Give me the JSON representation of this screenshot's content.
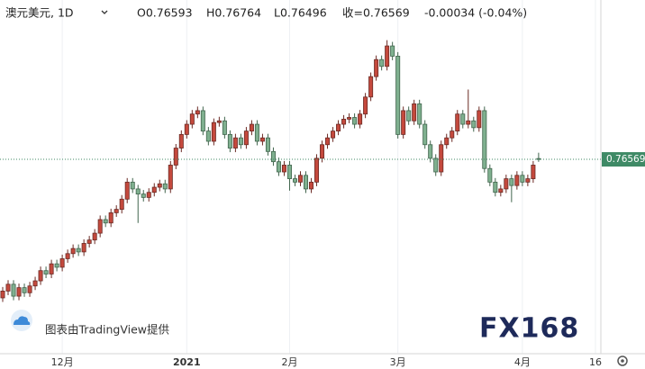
{
  "header": {
    "symbol": "澳元美元, 1D",
    "open": "O0.76593",
    "high": "H0.76764",
    "low": "L0.76496",
    "close": "收=0.76569",
    "change": "-0.00034 (-0.04%)"
  },
  "watermark": "图表由TradingView提供",
  "logo": "FX168",
  "chart_data": {
    "type": "candlestick",
    "up_color": "#c4493d",
    "down_color": "#7fb08f",
    "open": [
      0.725,
      0.727,
      0.729,
      0.7255,
      0.728,
      0.7265,
      0.7285,
      0.73,
      0.733,
      0.732,
      0.735,
      0.734,
      0.7365,
      0.738,
      0.7395,
      0.7385,
      0.741,
      0.742,
      0.744,
      0.748,
      0.747,
      0.75,
      0.751,
      0.754,
      0.759,
      0.757,
      0.7555,
      0.7545,
      0.756,
      0.7575,
      0.7585,
      0.757,
      0.764,
      0.769,
      0.773,
      0.776,
      0.779,
      0.78,
      0.774,
      0.771,
      0.7765,
      0.777,
      0.773,
      0.769,
      0.772,
      0.77,
      0.774,
      0.776,
      0.771,
      0.772,
      0.768,
      0.765,
      0.762,
      0.764,
      0.76,
      0.759,
      0.761,
      0.757,
      0.759,
      0.766,
      0.77,
      0.772,
      0.774,
      0.776,
      0.7775,
      0.778,
      0.776,
      0.779,
      0.784,
      0.79,
      0.795,
      0.793,
      0.799,
      0.796,
      0.773,
      0.78,
      0.777,
      0.782,
      0.776,
      0.77,
      0.766,
      0.762,
      0.77,
      0.772,
      0.774,
      0.779,
      0.776,
      0.777,
      0.775,
      0.78,
      0.763,
      0.759,
      0.756,
      0.757,
      0.76,
      0.758,
      0.761,
      0.759,
      0.76,
      0.76593
    ],
    "high": [
      0.7282,
      0.7302,
      0.7302,
      0.7292,
      0.7292,
      0.7297,
      0.7312,
      0.7342,
      0.7342,
      0.7362,
      0.7362,
      0.7377,
      0.7392,
      0.7407,
      0.7407,
      0.7422,
      0.7432,
      0.7452,
      0.7492,
      0.7492,
      0.7512,
      0.7522,
      0.7552,
      0.7602,
      0.7602,
      0.7582,
      0.7567,
      0.7572,
      0.7587,
      0.7597,
      0.7597,
      0.7652,
      0.7702,
      0.7742,
      0.7772,
      0.7802,
      0.7812,
      0.7812,
      0.7752,
      0.7777,
      0.7782,
      0.7782,
      0.7742,
      0.7732,
      0.7732,
      0.7752,
      0.7772,
      0.7772,
      0.7732,
      0.7732,
      0.7692,
      0.7662,
      0.7652,
      0.7652,
      0.7612,
      0.7622,
      0.7622,
      0.7602,
      0.7672,
      0.7712,
      0.7732,
      0.7752,
      0.7772,
      0.7787,
      0.7792,
      0.7792,
      0.7802,
      0.7852,
      0.7912,
      0.7962,
      0.7962,
      0.8007,
      0.8002,
      0.7972,
      0.7812,
      0.7812,
      0.7832,
      0.7832,
      0.7772,
      0.7712,
      0.7672,
      0.7712,
      0.7732,
      0.7752,
      0.7802,
      0.7802,
      0.7862,
      0.7782,
      0.7812,
      0.7812,
      0.7642,
      0.7602,
      0.7582,
      0.7612,
      0.7612,
      0.7622,
      0.7622,
      0.7612,
      0.7652,
      0.76764
    ],
    "low": [
      0.7238,
      0.7258,
      0.7243,
      0.7243,
      0.7253,
      0.7253,
      0.7273,
      0.7288,
      0.7308,
      0.7308,
      0.7328,
      0.7328,
      0.7353,
      0.7368,
      0.7373,
      0.7373,
      0.7398,
      0.7408,
      0.7428,
      0.7458,
      0.7458,
      0.7488,
      0.7498,
      0.7528,
      0.7558,
      0.747,
      0.7533,
      0.7533,
      0.7548,
      0.7563,
      0.7558,
      0.7558,
      0.7628,
      0.7678,
      0.7718,
      0.7748,
      0.7778,
      0.7728,
      0.7698,
      0.7698,
      0.7753,
      0.7718,
      0.7678,
      0.7678,
      0.7688,
      0.7688,
      0.7728,
      0.7698,
      0.7698,
      0.7668,
      0.7638,
      0.7608,
      0.7608,
      0.7565,
      0.7578,
      0.7578,
      0.7558,
      0.7558,
      0.7578,
      0.7648,
      0.7688,
      0.7708,
      0.7728,
      0.7748,
      0.7763,
      0.7748,
      0.7748,
      0.7778,
      0.7828,
      0.7888,
      0.7918,
      0.7918,
      0.7948,
      0.7718,
      0.7718,
      0.7758,
      0.7758,
      0.7748,
      0.7688,
      0.7648,
      0.7608,
      0.7608,
      0.7688,
      0.7708,
      0.7728,
      0.7748,
      0.7748,
      0.7738,
      0.7738,
      0.7618,
      0.7578,
      0.7548,
      0.7548,
      0.7558,
      0.7531,
      0.7568,
      0.7578,
      0.7578,
      0.7588,
      0.76496
    ],
    "close": [
      0.727,
      0.729,
      0.7255,
      0.728,
      0.7265,
      0.7285,
      0.73,
      0.733,
      0.732,
      0.735,
      0.734,
      0.7365,
      0.738,
      0.7395,
      0.7385,
      0.741,
      0.742,
      0.744,
      0.748,
      0.747,
      0.75,
      0.751,
      0.754,
      0.759,
      0.757,
      0.7555,
      0.7545,
      0.756,
      0.7575,
      0.7585,
      0.757,
      0.764,
      0.769,
      0.773,
      0.776,
      0.779,
      0.78,
      0.774,
      0.771,
      0.7765,
      0.777,
      0.773,
      0.769,
      0.772,
      0.77,
      0.774,
      0.776,
      0.771,
      0.772,
      0.768,
      0.765,
      0.762,
      0.764,
      0.76,
      0.759,
      0.761,
      0.757,
      0.759,
      0.766,
      0.77,
      0.772,
      0.774,
      0.776,
      0.7775,
      0.778,
      0.776,
      0.779,
      0.784,
      0.79,
      0.795,
      0.793,
      0.799,
      0.796,
      0.773,
      0.78,
      0.777,
      0.782,
      0.776,
      0.77,
      0.766,
      0.762,
      0.77,
      0.772,
      0.774,
      0.779,
      0.776,
      0.777,
      0.775,
      0.78,
      0.763,
      0.759,
      0.756,
      0.757,
      0.76,
      0.758,
      0.761,
      0.759,
      0.76,
      0.764,
      0.76569
    ],
    "xlim": [
      -0.5,
      110.5
    ],
    "xticks": [
      {
        "value": 11,
        "label": "12月"
      },
      {
        "value": 34,
        "label": "2021"
      },
      {
        "value": 53,
        "label": "2月"
      },
      {
        "value": 73,
        "label": "3月"
      },
      {
        "value": 96,
        "label": "4月"
      },
      {
        "value": 109.5,
        "label": "16"
      }
    ],
    "ylim": [
      0.7086,
      0.8125
    ],
    "grid": true
  }
}
